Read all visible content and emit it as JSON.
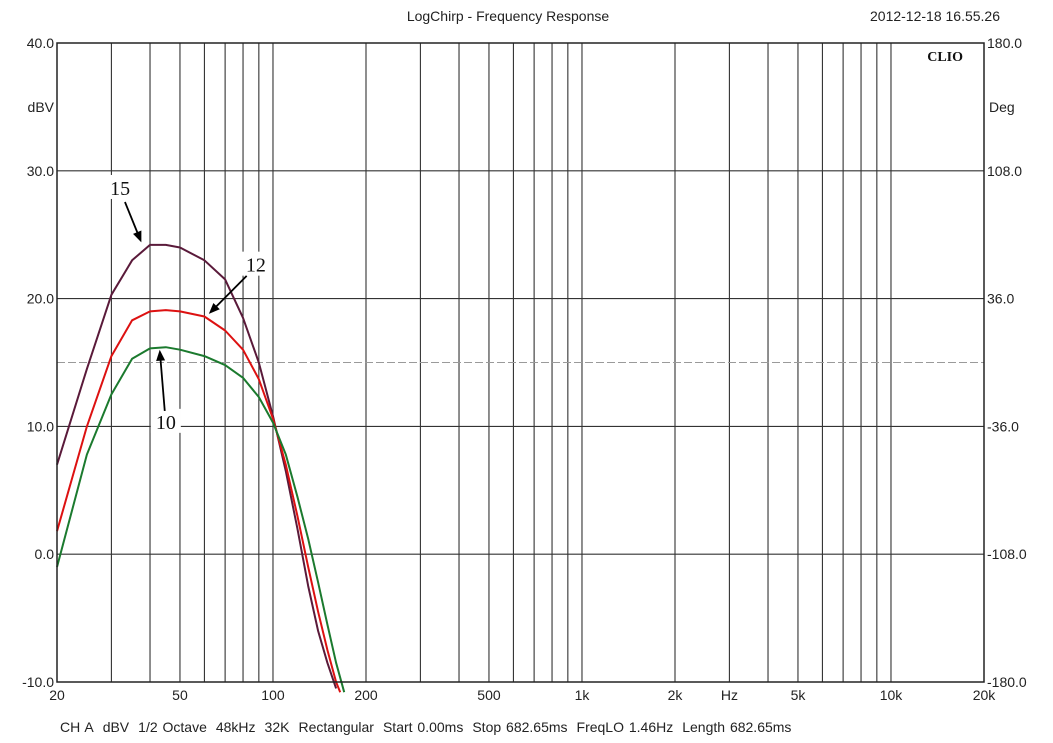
{
  "chart_data": {
    "type": "line",
    "title": "LogChirp - Frequency Response",
    "timestamp": "2012-12-18 16.55.26",
    "brand": "CLIO",
    "x_scale": "log",
    "xlim": [
      20,
      20000
    ],
    "x_ticks": [
      {
        "value": 20,
        "label": "20"
      },
      {
        "value": 50,
        "label": "50"
      },
      {
        "value": 100,
        "label": "100"
      },
      {
        "value": 200,
        "label": "200"
      },
      {
        "value": 500,
        "label": "500"
      },
      {
        "value": 1000,
        "label": "1k"
      },
      {
        "value": 2000,
        "label": "2k"
      },
      {
        "value": 5000,
        "label": "5k"
      },
      {
        "value": 10000,
        "label": "10k"
      },
      {
        "value": 20000,
        "label": "20k"
      }
    ],
    "x_unit_label": "Hz",
    "x_unit_value": 3000,
    "ylim": [
      -10,
      40
    ],
    "y_ticks": [
      {
        "value": 40,
        "label": "40.0"
      },
      {
        "value": 30,
        "label": "30.0"
      },
      {
        "value": 20,
        "label": "20.0"
      },
      {
        "value": 10,
        "label": "10.0"
      },
      {
        "value": 0,
        "label": "0.0"
      },
      {
        "value": -10,
        "label": "-10.0"
      }
    ],
    "y_unit_label": "dBV",
    "y_unit_value": 35,
    "y2lim": [
      -180,
      180
    ],
    "y2_ticks": [
      {
        "value": 180,
        "label": "180.0"
      },
      {
        "value": 108,
        "label": "108.0"
      },
      {
        "value": 36,
        "label": "36.0"
      },
      {
        "value": -36,
        "label": "-36.0"
      },
      {
        "value": -108,
        "label": "-108.0"
      },
      {
        "value": -180,
        "label": "-180.0"
      }
    ],
    "y2_unit_label": "Deg",
    "y2_unit_value": 144,
    "grid": true,
    "series": [
      {
        "color": "#5a1a3a",
        "x": [
          20,
          25,
          30,
          35,
          40,
          45,
          50,
          60,
          70,
          80,
          90,
          100,
          110,
          120,
          130,
          140,
          150,
          160
        ],
        "y": [
          7,
          14.5,
          20.3,
          23,
          24.2,
          24.2,
          24,
          23,
          21.5,
          18.5,
          15,
          10.8,
          6.5,
          2,
          -2.5,
          -6,
          -8.5,
          -10.5
        ]
      },
      {
        "color": "#dd1111",
        "x": [
          20,
          25,
          30,
          35,
          40,
          45,
          50,
          60,
          70,
          80,
          90,
          100,
          110,
          120,
          130,
          140,
          150,
          160,
          165
        ],
        "y": [
          1.8,
          10,
          15.5,
          18.3,
          19,
          19.1,
          19,
          18.6,
          17.5,
          16,
          13.7,
          10.6,
          7,
          3,
          -1,
          -4.5,
          -7.5,
          -10,
          -10.8
        ]
      },
      {
        "color": "#1b7a2e",
        "x": [
          20,
          25,
          30,
          35,
          40,
          45,
          50,
          60,
          70,
          80,
          90,
          100,
          110,
          120,
          130,
          140,
          150,
          160,
          170
        ],
        "y": [
          -1,
          7.8,
          12.5,
          15.3,
          16.1,
          16.2,
          16,
          15.5,
          14.8,
          13.8,
          12.3,
          10.3,
          7.8,
          4.5,
          1.2,
          -2.2,
          -5.5,
          -8.5,
          -10.8
        ]
      }
    ],
    "annotations": [
      {
        "label": "15",
        "text_x": 32,
        "text_y": 28.5,
        "arrow_x": 37.5,
        "arrow_y": 24.4
      },
      {
        "label": "12",
        "text_x": 88,
        "text_y": 22.5,
        "arrow_x": 62,
        "arrow_y": 18.8
      },
      {
        "label": "10",
        "text_x": 45,
        "text_y": 10.2,
        "arrow_x": 43,
        "arrow_y": 16
      }
    ]
  },
  "footer": {
    "items": [
      "CH A",
      "dBV",
      "1/2 Octave",
      "48kHz",
      "32K",
      "Rectangular",
      "Start 0.00ms",
      "Stop 682.65ms",
      "FreqLO 1.46Hz",
      "Length 682.65ms"
    ]
  }
}
